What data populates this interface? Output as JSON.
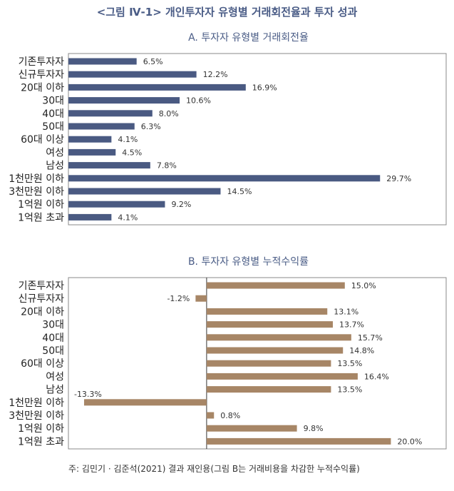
{
  "figure_title": "<그림 Ⅳ-1> 개인투자자 유형별 거래회전율과 투자 성과",
  "note": "주: 김민기 · 김준석(2021) 결과 재인용(그림 B는 거래비용을 차감한 누적수익률)",
  "colors": {
    "panel_a_bar": "#4a5a82",
    "panel_b_bar": "#a78666",
    "title": "#4a5c86"
  },
  "chart_data": [
    {
      "type": "bar",
      "orientation": "horizontal",
      "title": "A. 투자자 유형별 거래회전율",
      "categories": [
        "기존투자자",
        "신규투자자",
        "20대 이하",
        "30대",
        "40대",
        "50대",
        "60대 이상",
        "여성",
        "남성",
        "1천만원 이하",
        "3천만원 이하",
        "1억원 이하",
        "1억원 초과"
      ],
      "values": [
        6.5,
        12.2,
        16.9,
        10.6,
        8.0,
        6.3,
        4.1,
        4.5,
        7.8,
        29.7,
        14.5,
        9.2,
        4.1
      ],
      "labels": [
        "6.5%",
        "12.2%",
        "16.9%",
        "10.6%",
        "8.0%",
        "6.3%",
        "4.1%",
        "4.5%",
        "7.8%",
        "29.7%",
        "14.5%",
        "9.2%",
        "4.1%"
      ],
      "xlim": [
        0,
        36
      ],
      "unit": "%"
    },
    {
      "type": "bar",
      "orientation": "horizontal",
      "title": "B. 투자자 유형별 누적수익률",
      "categories": [
        "기존투자자",
        "신규투자자",
        "20대 이하",
        "30대",
        "40대",
        "50대",
        "60대 이상",
        "여성",
        "남성",
        "1천만원 이하",
        "3천만원 이하",
        "1억원 이하",
        "1억원 초과"
      ],
      "values": [
        15.0,
        -1.2,
        13.1,
        13.7,
        15.7,
        14.8,
        13.5,
        16.4,
        13.5,
        -13.3,
        0.8,
        9.8,
        20.0
      ],
      "labels": [
        "15.0%",
        "-1.2%",
        "13.1%",
        "13.7%",
        "15.7%",
        "14.8%",
        "13.5%",
        "16.4%",
        "13.5%",
        "-13.3%",
        "0.8%",
        "9.8%",
        "20.0%"
      ],
      "xlim": [
        -15,
        26
      ],
      "unit": "%"
    }
  ]
}
